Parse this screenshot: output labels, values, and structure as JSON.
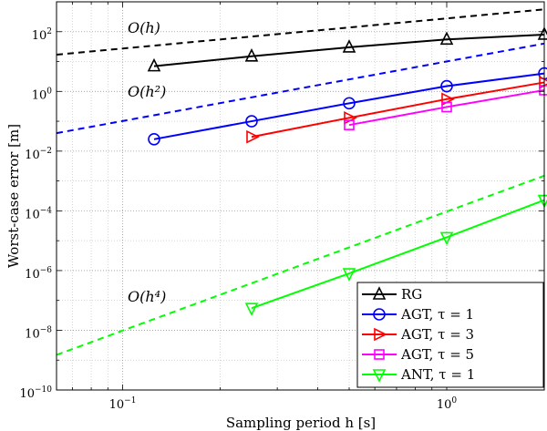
{
  "chart_data": {
    "type": "line",
    "xscale": "log",
    "yscale": "log",
    "xlim": [
      0.0625,
      2
    ],
    "ylim": [
      1e-10,
      1000
    ],
    "xlabel": "Sampling period h [s]",
    "ylabel": "Worst-case error [m]",
    "grid": true,
    "legend_position": "bottom-right",
    "x_ticks": [
      {
        "value": 0.1,
        "base": "10",
        "exp": "−1"
      },
      {
        "value": 1,
        "base": "10",
        "exp": "0"
      }
    ],
    "y_ticks": [
      {
        "value": 1e-10,
        "base": "10",
        "exp": "−10"
      },
      {
        "value": 1e-08,
        "base": "10",
        "exp": "−8"
      },
      {
        "value": 1e-06,
        "base": "10",
        "exp": "−6"
      },
      {
        "value": 0.0001,
        "base": "10",
        "exp": "−4"
      },
      {
        "value": 0.01,
        "base": "10",
        "exp": "−2"
      },
      {
        "value": 1,
        "base": "10",
        "exp": "0"
      },
      {
        "value": 100,
        "base": "10",
        "exp": "2"
      }
    ],
    "series": [
      {
        "name": "RG",
        "color": "#000000",
        "marker": "triangle-up",
        "x": [
          0.125,
          0.25,
          0.5,
          1,
          2
        ],
        "y": [
          7,
          15,
          30,
          55,
          80
        ]
      },
      {
        "name": "AGT, τ = 1",
        "color": "#0000ff",
        "marker": "circle",
        "x": [
          0.125,
          0.25,
          0.5,
          1,
          2
        ],
        "y": [
          0.025,
          0.1,
          0.4,
          1.5,
          4
        ]
      },
      {
        "name": "AGT, τ = 3",
        "color": "#ff0000",
        "marker": "triangle-right",
        "x": [
          0.25,
          0.5,
          1,
          2
        ],
        "y": [
          0.03,
          0.13,
          0.55,
          2
        ]
      },
      {
        "name": "AGT, τ = 5",
        "color": "#ff00ff",
        "marker": "square",
        "x": [
          0.5,
          1,
          2
        ],
        "y": [
          0.075,
          0.3,
          1.1
        ]
      },
      {
        "name": "ANT, τ = 1",
        "color": "#00ff00",
        "marker": "triangle-down",
        "x": [
          0.25,
          0.5,
          1,
          2
        ],
        "y": [
          5.5e-08,
          8e-07,
          1.3e-05,
          0.00023
        ]
      }
    ],
    "reference_lines": [
      {
        "label": "O(h)",
        "color": "#000000",
        "x": [
          0.0625,
          2
        ],
        "y": [
          17,
          560
        ]
      },
      {
        "label": "O(h²)",
        "color": "#0000ff",
        "x": [
          0.0625,
          2
        ],
        "y": [
          0.04,
          40
        ]
      },
      {
        "label": "O(h⁴)",
        "color": "#00ff00",
        "x": [
          0.0625,
          2
        ],
        "y": [
          1.5e-09,
          0.0015
        ]
      }
    ]
  }
}
